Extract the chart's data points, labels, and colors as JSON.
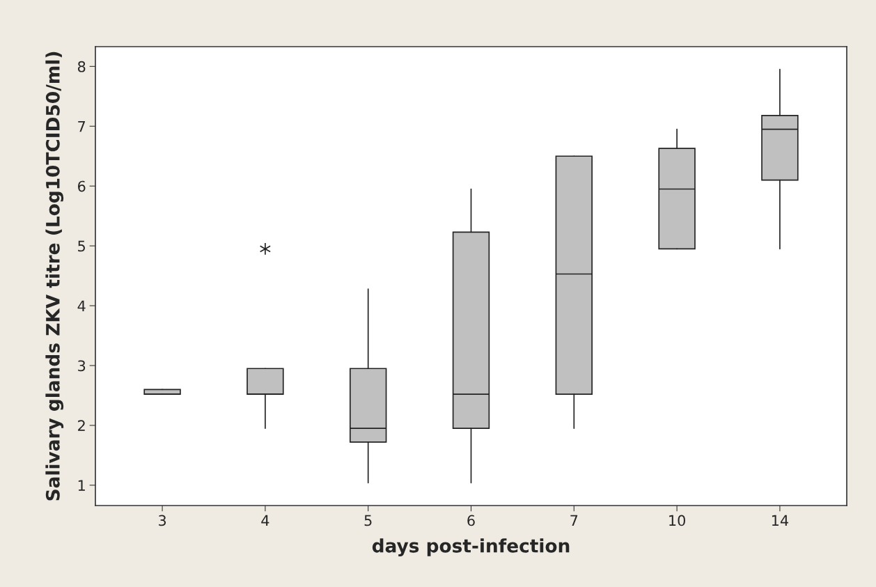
{
  "chart_data": {
    "type": "box",
    "xlabel": "days post-infection",
    "ylabel": "Salivary glands ZKV titre (Log10TCID50/ml)",
    "categories": [
      "3",
      "4",
      "5",
      "6",
      "7",
      "10",
      "14"
    ],
    "color": "#c0c0c0",
    "ylim": [
      0.66,
      8.33
    ],
    "yticks": [
      1,
      2,
      3,
      4,
      5,
      6,
      7,
      8
    ],
    "grid": false,
    "boxes": [
      {
        "low": 2.52,
        "q1": 2.52,
        "median": 2.52,
        "q3": 2.6,
        "high": 2.6
      },
      {
        "low": 1.95,
        "q1": 2.52,
        "median": 2.52,
        "q3": 2.95,
        "high": 2.95,
        "outliers": [
          4.95
        ]
      },
      {
        "low": 1.04,
        "q1": 1.72,
        "median": 1.95,
        "q3": 2.95,
        "high": 4.28
      },
      {
        "low": 1.04,
        "q1": 1.95,
        "median": 2.52,
        "q3": 5.23,
        "high": 5.95
      },
      {
        "low": 1.95,
        "q1": 2.52,
        "median": 4.53,
        "q3": 6.5,
        "high": 6.5
      },
      {
        "low": 4.95,
        "q1": 4.95,
        "median": 5.95,
        "q3": 6.63,
        "high": 6.95
      },
      {
        "low": 4.95,
        "q1": 6.1,
        "median": 6.95,
        "q3": 7.18,
        "high": 7.95
      }
    ]
  }
}
